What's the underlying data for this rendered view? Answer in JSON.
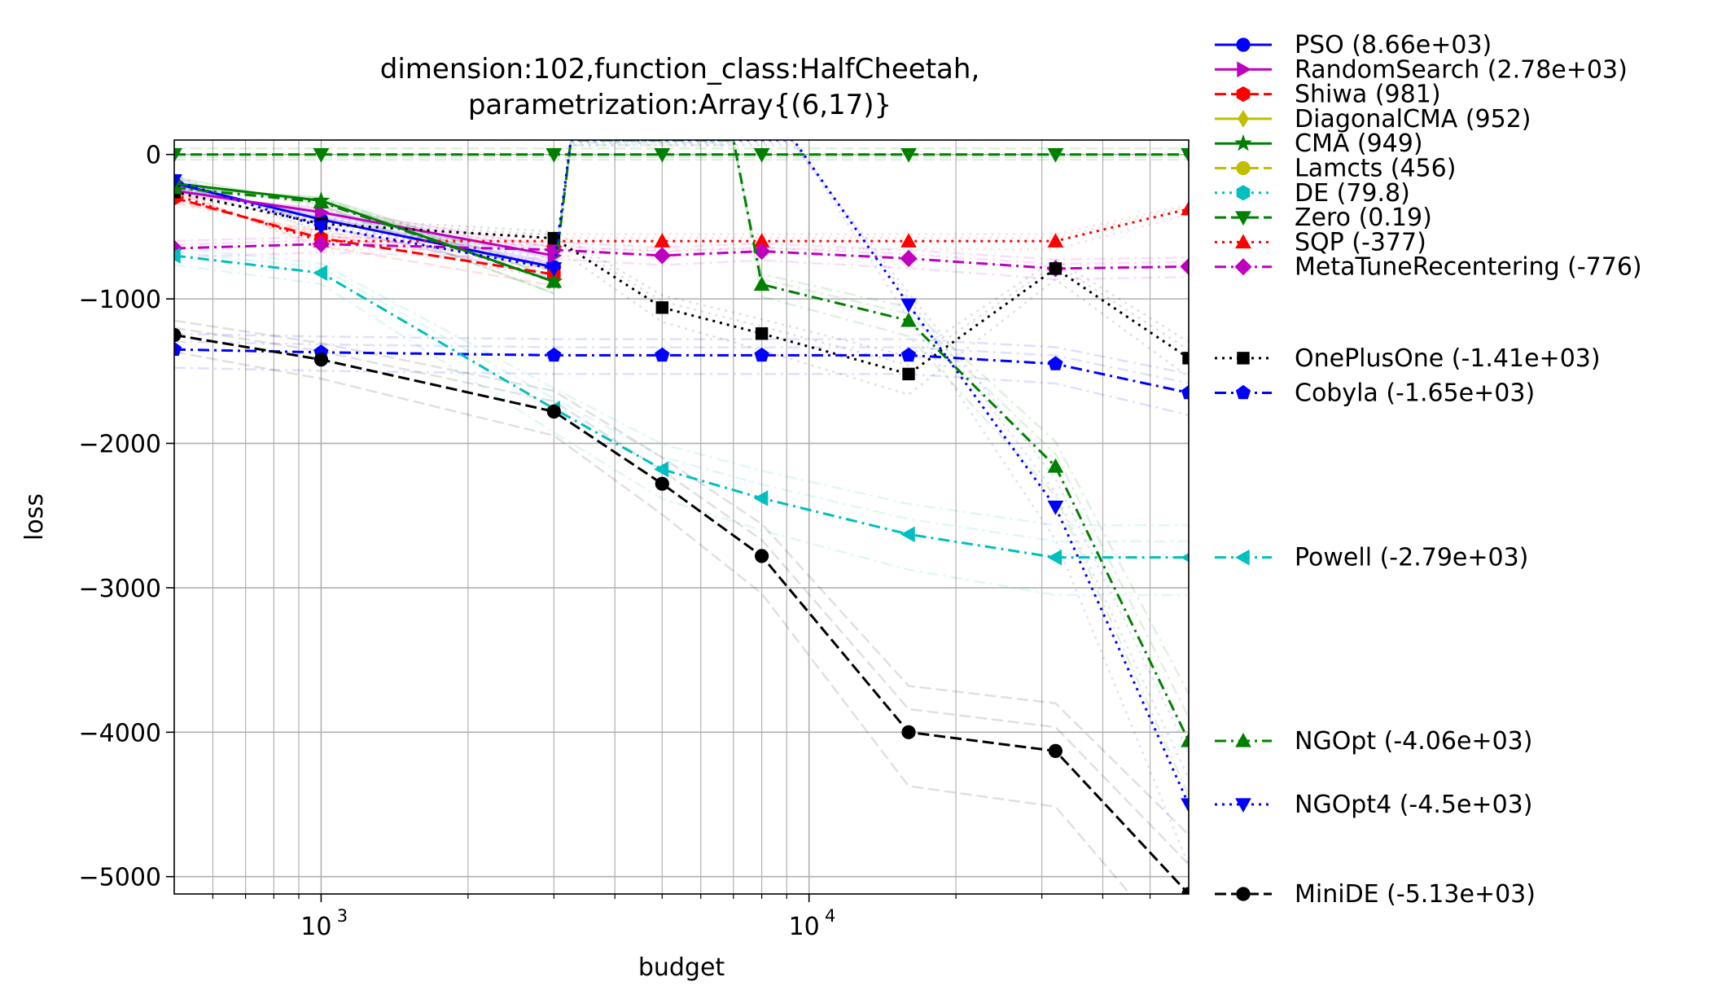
{
  "chart_data": {
    "type": "line",
    "title_lines": [
      "dimension:102,function_class:HalfCheetah,",
      "parametrization:Array{(6,17)}"
    ],
    "xlabel": "budget",
    "ylabel": "loss",
    "xscale": "log",
    "xlim": [
      500,
      60000
    ],
    "ylim": [
      -5120,
      100
    ],
    "grid": true,
    "x_ticks": [
      {
        "value": 1000,
        "base": "10",
        "exp": "3"
      },
      {
        "value": 10000,
        "base": "10",
        "exp": "4"
      }
    ],
    "y_ticks": [
      {
        "value": 0,
        "label": "0"
      },
      {
        "value": -1000,
        "label": "−1000"
      },
      {
        "value": -2000,
        "label": "−2000"
      },
      {
        "value": -3000,
        "label": "−3000"
      },
      {
        "value": -4000,
        "label": "−4000"
      },
      {
        "value": -5000,
        "label": "−5000"
      }
    ],
    "legend_position": "right, outside plot",
    "series": [
      {
        "name": "PSO (8.66e+03)",
        "color": "#0000ff",
        "dash": "solid",
        "marker": "circle",
        "x": [
          500,
          1000,
          3000
        ],
        "y": [
          -200,
          -450,
          -780
        ]
      },
      {
        "name": "RandomSearch (2.78e+03)",
        "color": "#bf00bf",
        "dash": "solid",
        "marker": "triangle-right",
        "x": [
          500,
          1000,
          3000
        ],
        "y": [
          -250,
          -400,
          -700
        ]
      },
      {
        "name": "Shiwa (981)",
        "color": "#ff0000",
        "dash": "dashed",
        "marker": "hexagon",
        "x": [
          500,
          1000,
          3000
        ],
        "y": [
          -300,
          -580,
          -830
        ]
      },
      {
        "name": "DiagonalCMA (952)",
        "color": "#bfbf00",
        "dash": "solid",
        "marker": "diamond-thin",
        "x": [],
        "y": []
      },
      {
        "name": "CMA (949)",
        "color": "#008000",
        "dash": "solid",
        "marker": "star",
        "x": [
          500,
          1000,
          3000
        ],
        "y": [
          -200,
          -320,
          -880
        ]
      },
      {
        "name": "Lamcts (456)",
        "color": "#bfbf00",
        "dash": "dashed",
        "marker": "circle",
        "x": [],
        "y": []
      },
      {
        "name": "DE (79.8)",
        "color": "#00bfbf",
        "dash": "dotted",
        "marker": "hexagon",
        "x": [],
        "y": []
      },
      {
        "name": "Zero (0.19)",
        "color": "#008000",
        "dash": "dashed",
        "marker": "triangle-down",
        "x": [
          500,
          1000,
          3000,
          5000,
          8000,
          16000,
          32000,
          60000
        ],
        "y": [
          0,
          0,
          0,
          0,
          0,
          0,
          0,
          0
        ]
      },
      {
        "name": "SQP (-377)",
        "color": "#ff0000",
        "dash": "dotted",
        "marker": "triangle-up",
        "x": [
          500,
          1000,
          3000,
          5000,
          8000,
          16000,
          32000,
          60000
        ],
        "y": [
          -280,
          -600,
          -600,
          -600,
          -600,
          -600,
          -600,
          -377
        ]
      },
      {
        "name": "MetaTuneRecentering (-776)",
        "color": "#bf00bf",
        "dash": "dashdot",
        "marker": "diamond",
        "x": [
          500,
          1000,
          3000,
          5000,
          8000,
          16000,
          32000,
          60000
        ],
        "y": [
          -650,
          -620,
          -660,
          -700,
          -670,
          -720,
          -790,
          -776
        ]
      },
      {
        "name": "OnePlusOne (-1.41e+03)",
        "color": "#000000",
        "dash": "dotted",
        "marker": "square",
        "x": [
          500,
          1000,
          3000,
          5000,
          8000,
          16000,
          32000,
          60000
        ],
        "y": [
          -260,
          -480,
          -580,
          -1060,
          -1240,
          -1520,
          -790,
          -1410
        ]
      },
      {
        "name": "Cobyla (-1.65e+03)",
        "color": "#0000ff",
        "dash": "dashdot",
        "marker": "pentagon",
        "x": [
          500,
          1000,
          3000,
          5000,
          8000,
          16000,
          32000,
          60000
        ],
        "y": [
          -1350,
          -1370,
          -1390,
          -1390,
          -1390,
          -1390,
          -1450,
          -1650
        ]
      },
      {
        "name": "Powell (-2.79e+03)",
        "color": "#00bfbf",
        "dash": "dashdot",
        "marker": "triangle-left",
        "x": [
          500,
          1000,
          3000,
          5000,
          8000,
          16000,
          32000,
          60000
        ],
        "y": [
          -700,
          -820,
          -1760,
          -2180,
          -2380,
          -2630,
          -2790,
          -2790
        ]
      },
      {
        "name": "NGOpt (-4.06e+03)",
        "color": "#008000",
        "dash": "dashdot",
        "marker": "triangle-up",
        "x": [
          500,
          1000,
          3000,
          3250,
          7000,
          8000,
          16000,
          32000,
          60000
        ],
        "y": [
          -230,
          -330,
          -880,
          100,
          100,
          -900,
          -1150,
          -2160,
          -4060
        ]
      },
      {
        "name": "NGOpt4 (-4.5e+03)",
        "color": "#0000ff",
        "dash": "dotted",
        "marker": "triangle-down",
        "x": [
          500,
          1000,
          3000,
          3250,
          9300,
          16000,
          32000,
          60000
        ],
        "y": [
          -180,
          -500,
          -790,
          100,
          100,
          -1040,
          -2440,
          -4500
        ]
      },
      {
        "name": "MiniDE (-5.13e+03)",
        "color": "#000000",
        "dash": "dashed",
        "marker": "circle",
        "x": [
          500,
          1000,
          3000,
          5000,
          8000,
          16000,
          32000,
          60000
        ],
        "y": [
          -1250,
          -1420,
          -1780,
          -2280,
          -2780,
          -4000,
          -4130,
          -5120
        ]
      }
    ]
  }
}
